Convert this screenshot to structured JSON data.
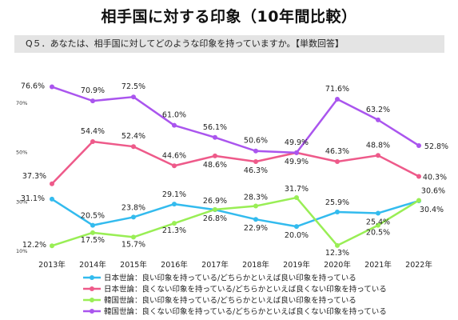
{
  "header": {
    "title": "相手国に対する印象（10年間比較）",
    "question": "Q５．あなたは、相手国に対してどのような印象を持っていますか。【単数回答】"
  },
  "chart_data": {
    "type": "line",
    "x": [
      "2013年",
      "2014年",
      "2015年",
      "2016年",
      "2017年",
      "2018年",
      "2019年",
      "2020年",
      "2021年",
      "2022年"
    ],
    "yticks": [
      {
        "value": 70,
        "label": "70%"
      },
      {
        "value": 50,
        "label": "50%"
      },
      {
        "value": 30,
        "label": "30%"
      },
      {
        "value": 10,
        "label": "10%"
      }
    ],
    "series": [
      {
        "name": "日本世論：良い印象を持っている/どちらかといえば良い印象を持っている",
        "color": "#33bbee",
        "values": [
          31.1,
          20.5,
          23.8,
          29.1,
          26.8,
          22.9,
          20.0,
          25.9,
          25.4,
          30.4
        ],
        "labels": [
          "31.1%",
          "20.5%",
          "23.8%",
          "29.1%",
          "26.8%",
          "22.9%",
          "20.0%",
          "25.9%",
          "25.4%",
          "30.4%"
        ]
      },
      {
        "name": "日本世論：良くない印象を持っている/どちらかといえば良くない印象を持っている",
        "color": "#ee5a8a",
        "values": [
          37.3,
          54.4,
          52.4,
          44.6,
          48.6,
          46.3,
          49.9,
          46.3,
          48.8,
          40.3
        ],
        "labels": [
          "37.3%",
          "54.4%",
          "52.4%",
          "44.6%",
          "48.6%",
          "46.3%",
          "49.9%",
          "46.3%",
          "48.8%",
          "40.3%"
        ]
      },
      {
        "name": "韓国世論：良い印象を持っている/どちらかといえば良い印象を持っている",
        "color": "#99ee55",
        "values": [
          12.2,
          17.5,
          15.7,
          21.3,
          26.9,
          28.3,
          31.7,
          12.3,
          20.5,
          30.6
        ],
        "labels": [
          "12.2%",
          "17.5%",
          "15.7%",
          "21.3%",
          "26.9%",
          "28.3%",
          "31.7%",
          "12.3%",
          "20.5%",
          "30.6%"
        ]
      },
      {
        "name": "韓国世論：良くない印象を持っている/どちらかといえば良くない印象を持っている",
        "color": "#aa55ee",
        "values": [
          76.6,
          70.9,
          72.5,
          61.0,
          56.1,
          50.6,
          49.9,
          71.6,
          63.2,
          52.8
        ],
        "labels": [
          "76.6%",
          "70.9%",
          "72.5%",
          "61.0%",
          "56.1%",
          "50.6%",
          "49.9%",
          "71.6%",
          "63.2%",
          "52.8%"
        ]
      }
    ]
  }
}
